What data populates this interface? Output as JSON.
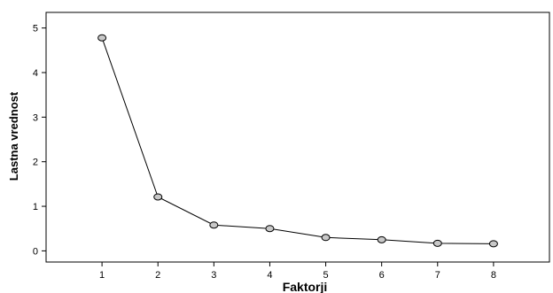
{
  "chart_data": {
    "type": "line",
    "title": "",
    "xlabel": "Faktorji",
    "ylabel": "Lastna vrednost",
    "x": [
      1,
      2,
      3,
      4,
      5,
      6,
      7,
      8
    ],
    "series": [
      {
        "values": [
          4.78,
          1.21,
          0.58,
          0.5,
          0.3,
          0.25,
          0.17,
          0.16
        ]
      }
    ],
    "xticks": [
      "1",
      "2",
      "3",
      "4",
      "5",
      "6",
      "7",
      "8"
    ],
    "yticks": [
      "0",
      "1",
      "2",
      "3",
      "4",
      "5"
    ],
    "xlim": [
      0,
      9
    ],
    "ylim": [
      -0.25,
      5.35
    ],
    "grid": false,
    "legend": "none",
    "marker": "circle",
    "colors": {
      "line": "#000000",
      "marker_fill": "#c8c8c8",
      "marker_stroke": "#000000"
    }
  }
}
